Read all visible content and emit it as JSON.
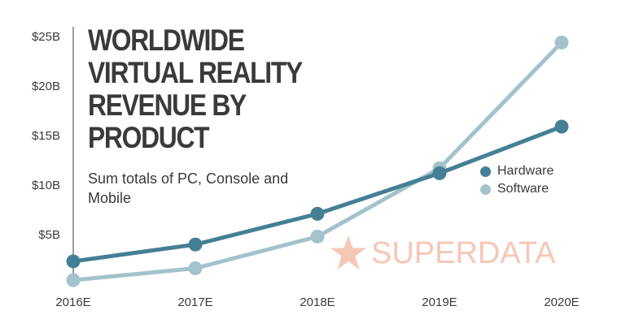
{
  "title_lines": [
    "Worldwide",
    "Virtual Reality",
    "Revenue by",
    "Product"
  ],
  "subtitle": "Sum totals of PC, Console and Mobile",
  "watermark": "SUPERDATA",
  "colors": {
    "hardware": "#457f94",
    "software": "#a3c2cc",
    "axis": "#3a3a3a",
    "watermark": "#f6c7b6"
  },
  "chart_data": {
    "type": "line",
    "categories": [
      "2016E",
      "2017E",
      "2018E",
      "2019E",
      "2020E"
    ],
    "ytick_labels": [
      "$5B",
      "$10B",
      "$15B",
      "$20B",
      "$25B"
    ],
    "ytick_values": [
      5,
      10,
      15,
      20,
      25
    ],
    "ylim": [
      0,
      25
    ],
    "y_unit": "$B",
    "grid": false,
    "legend_position": "right",
    "series": [
      {
        "name": "Hardware",
        "values": [
          2.3,
          4.0,
          7.1,
          11.2,
          15.9
        ]
      },
      {
        "name": "Software",
        "values": [
          0.4,
          1.6,
          4.8,
          11.7,
          24.4
        ]
      }
    ]
  }
}
